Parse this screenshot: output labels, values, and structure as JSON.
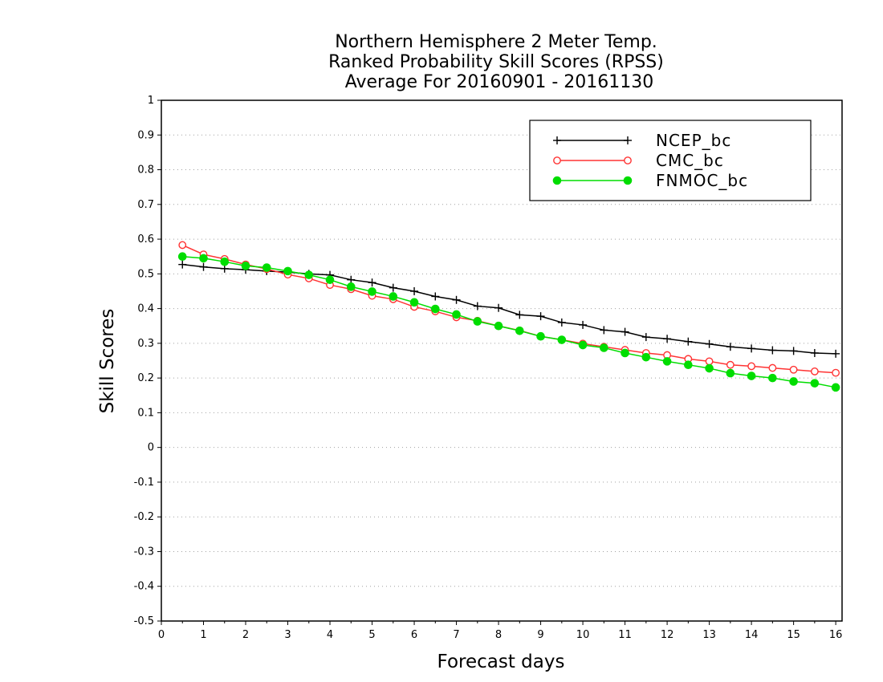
{
  "chart_data": {
    "type": "line",
    "title": [
      "Northern Hemisphere 2 Meter Temp.",
      "Ranked Probability Skill Scores (RPSS)",
      "Average For 20160901 - 20161130"
    ],
    "xlabel": "Forecast days",
    "ylabel": "Skill Scores",
    "xlim": [
      0,
      16.15
    ],
    "ylim": [
      -0.5,
      1
    ],
    "xticks": [
      "0",
      "1",
      "2",
      "3",
      "4",
      "5",
      "6",
      "7",
      "8",
      "9",
      "10",
      "11",
      "12",
      "13",
      "14",
      "15",
      "16"
    ],
    "yticks": [
      "1",
      "0.9",
      "0.8",
      "0.7",
      "0.6",
      "0.5",
      "0.4",
      "0.3",
      "0.2",
      "0.1",
      "0",
      "-0.1",
      "-0.2",
      "-0.3",
      "-0.4",
      "-0.5"
    ],
    "grid": "horizontal dotted",
    "legend_position": "top-right",
    "x": [
      0.5,
      1,
      1.5,
      2,
      2.5,
      3,
      3.5,
      4,
      4.5,
      5,
      5.5,
      6,
      6.5,
      7,
      7.5,
      8,
      8.5,
      9,
      9.5,
      10,
      10.5,
      11,
      11.5,
      12,
      12.5,
      13,
      13.5,
      14,
      14.5,
      15,
      15.5,
      16
    ],
    "series": [
      {
        "name": "NCEP_bc",
        "color": "#000000",
        "marker": "plus",
        "values": [
          0.527,
          0.52,
          0.515,
          0.512,
          0.508,
          0.505,
          0.5,
          0.497,
          0.483,
          0.475,
          0.46,
          0.45,
          0.435,
          0.425,
          0.407,
          0.402,
          0.382,
          0.378,
          0.36,
          0.353,
          0.338,
          0.333,
          0.318,
          0.313,
          0.305,
          0.298,
          0.29,
          0.285,
          0.28,
          0.278,
          0.272,
          0.27
        ]
      },
      {
        "name": "CMC_bc",
        "color": "#ff3333",
        "marker": "open-circle",
        "values": [
          0.583,
          0.556,
          0.543,
          0.527,
          0.514,
          0.498,
          0.487,
          0.468,
          0.456,
          0.437,
          0.427,
          0.405,
          0.392,
          0.375,
          0.365,
          0.35,
          0.337,
          0.32,
          0.31,
          0.299,
          0.29,
          0.281,
          0.272,
          0.266,
          0.255,
          0.248,
          0.238,
          0.234,
          0.229,
          0.224,
          0.219,
          0.215
        ]
      },
      {
        "name": "FNMOC_bc",
        "color": "#00dd00",
        "marker": "filled-circle",
        "values": [
          0.55,
          0.545,
          0.535,
          0.523,
          0.518,
          0.508,
          0.497,
          0.483,
          0.463,
          0.449,
          0.435,
          0.418,
          0.399,
          0.383,
          0.363,
          0.35,
          0.336,
          0.32,
          0.31,
          0.295,
          0.287,
          0.272,
          0.26,
          0.248,
          0.238,
          0.228,
          0.214,
          0.206,
          0.2,
          0.19,
          0.185,
          0.173
        ]
      }
    ]
  }
}
